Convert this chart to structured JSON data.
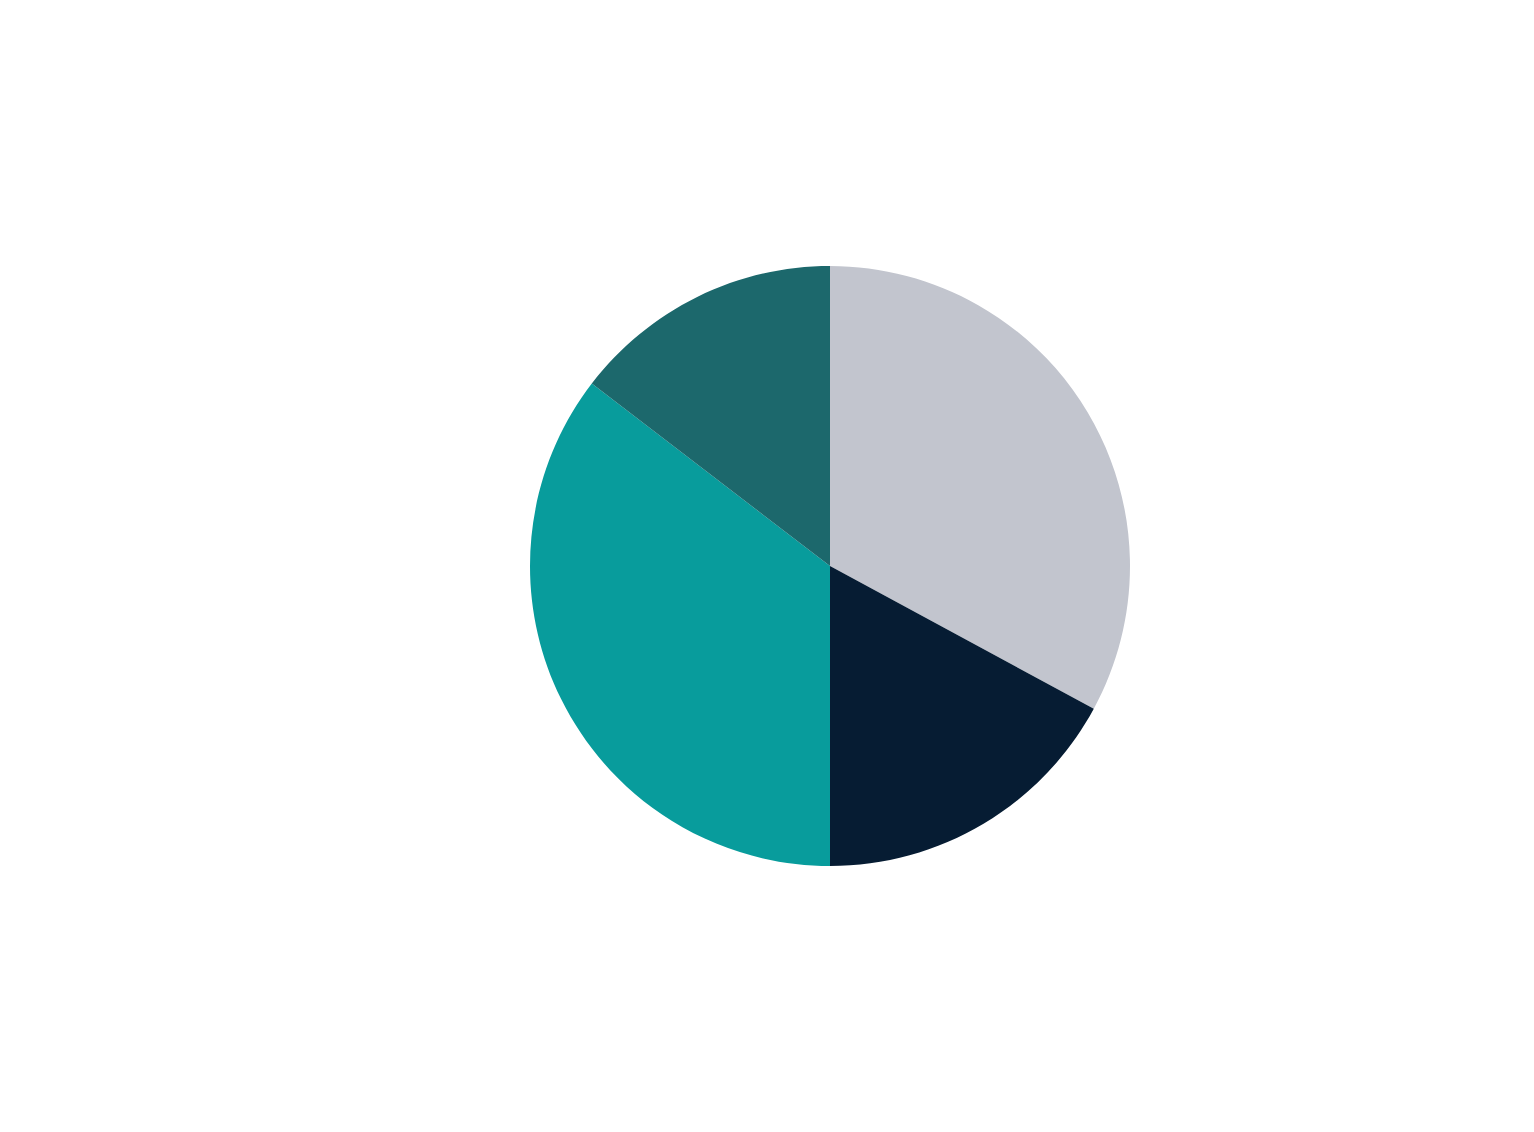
{
  "chart_data": {
    "type": "pie",
    "categories": [
      null,
      null,
      null,
      null
    ],
    "values": [
      32.9,
      17.1,
      35.4,
      14.6
    ],
    "colors": [
      "#c2c5ce",
      "#061c33",
      "#089c9c",
      "#1c686c"
    ]
  }
}
